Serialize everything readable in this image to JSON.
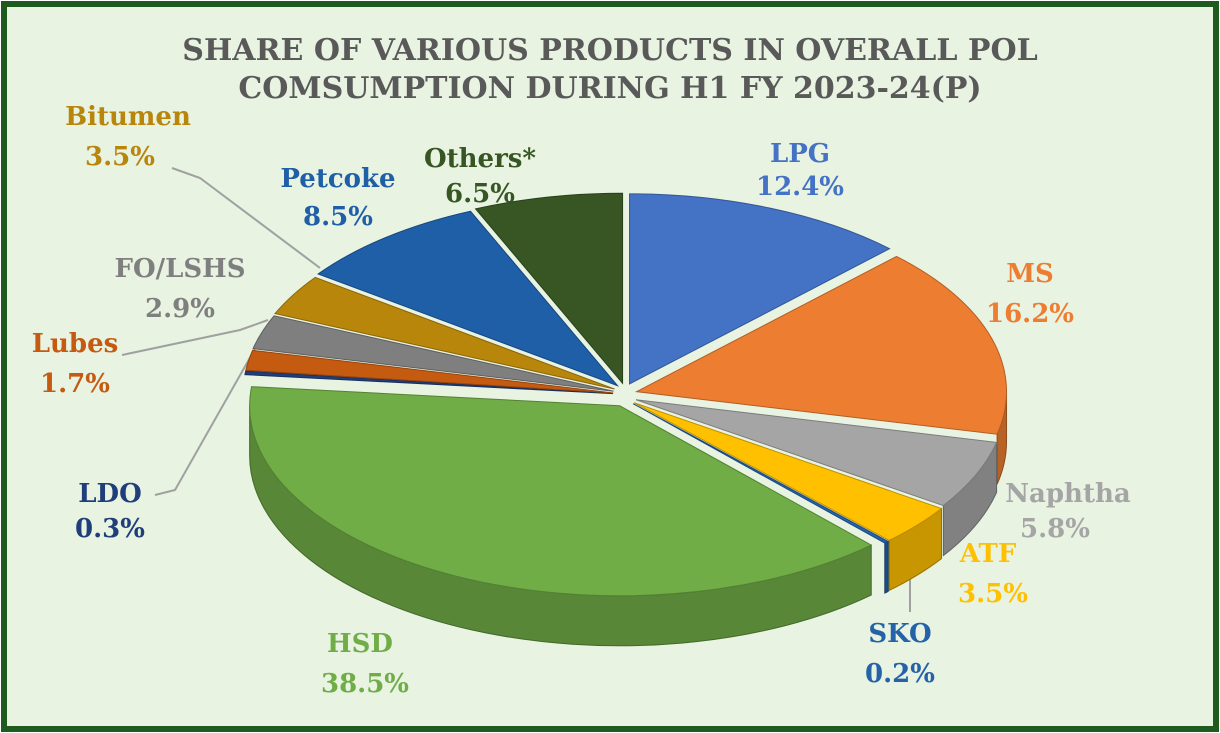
{
  "chart_data": {
    "type": "pie",
    "title": [
      "SHARE OF VARIOUS PRODUCTS IN OVERALL POL",
      "COMSUMPTION DURING H1  FY 2023-24(P)"
    ],
    "categories": [
      "LPG",
      "MS",
      "Naphtha",
      "ATF",
      "SKO",
      "HSD",
      "LDO",
      "Lubes",
      "FO/LSHS",
      "Bitumen",
      "Petcoke",
      "Others*"
    ],
    "values": [
      12.4,
      16.2,
      5.8,
      3.5,
      0.2,
      38.5,
      0.3,
      1.7,
      2.9,
      3.5,
      8.5,
      6.5
    ],
    "value_labels": [
      "12.4%",
      "16.2%",
      "5.8%",
      "3.5%",
      "0.2%",
      "38.5%",
      "0.3%",
      "1.7%",
      "2.9%",
      "3.5%",
      "8.5%",
      "6.5%"
    ],
    "colors": [
      "#4472c4",
      "#ed7d31",
      "#a5a5a5",
      "#ffc000",
      "#2563a8",
      "#70ad47",
      "#203f7a",
      "#c55a11",
      "#7f7f7f",
      "#b8860b",
      "#1f5fa8",
      "#375623"
    ]
  }
}
